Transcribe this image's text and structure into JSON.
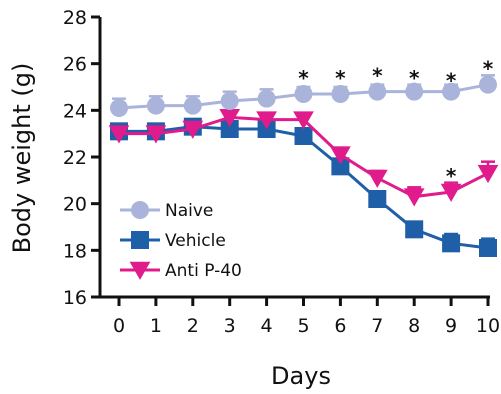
{
  "chart_data": {
    "type": "line",
    "title": "",
    "xlabel": "Days",
    "ylabel": "Body weight (g)",
    "x": [
      0,
      1,
      2,
      3,
      4,
      5,
      6,
      7,
      8,
      9,
      10
    ],
    "xlim": [
      0,
      10
    ],
    "ylim": [
      16,
      28
    ],
    "yticks": [
      16,
      18,
      20,
      22,
      24,
      26,
      28
    ],
    "grid": false,
    "legend_position": "bottom-left",
    "series": [
      {
        "name": "Naive",
        "marker": "circle",
        "color": "#aab4db",
        "values": [
          24.1,
          24.2,
          24.2,
          24.4,
          24.5,
          24.7,
          24.7,
          24.8,
          24.8,
          24.8,
          25.1
        ],
        "errors": [
          0.4,
          0.4,
          0.4,
          0.4,
          0.4,
          0.3,
          0.3,
          0.3,
          0.3,
          0.3,
          0.4
        ]
      },
      {
        "name": "Vehicle",
        "marker": "square",
        "color": "#1f5fa8",
        "values": [
          23.1,
          23.1,
          23.3,
          23.2,
          23.2,
          22.9,
          21.6,
          20.2,
          18.9,
          18.3,
          18.1
        ],
        "errors": [
          0.3,
          0.2,
          0.2,
          0.2,
          0.2,
          0.2,
          0.3,
          0.3,
          0.3,
          0.4,
          0.4
        ]
      },
      {
        "name": "Anti P-40",
        "marker": "triangle-down",
        "color": "#e01b8b",
        "values": [
          23.0,
          23.0,
          23.2,
          23.7,
          23.6,
          23.6,
          22.1,
          21.1,
          20.3,
          20.5,
          21.3
        ],
        "errors": [
          0.2,
          0.2,
          0.2,
          0.2,
          0.2,
          0.2,
          0.3,
          0.3,
          0.4,
          0.4,
          0.5
        ]
      }
    ],
    "annotations": [
      {
        "text": "*",
        "x": 5,
        "y": 25.6
      },
      {
        "text": "*",
        "x": 6,
        "y": 25.6
      },
      {
        "text": "*",
        "x": 7,
        "y": 25.7
      },
      {
        "text": "*",
        "x": 8,
        "y": 25.6
      },
      {
        "text": "*",
        "x": 9,
        "y": 25.5
      },
      {
        "text": "*",
        "x": 10,
        "y": 26.0
      },
      {
        "text": "*",
        "x": 9,
        "y": 21.4
      }
    ]
  }
}
